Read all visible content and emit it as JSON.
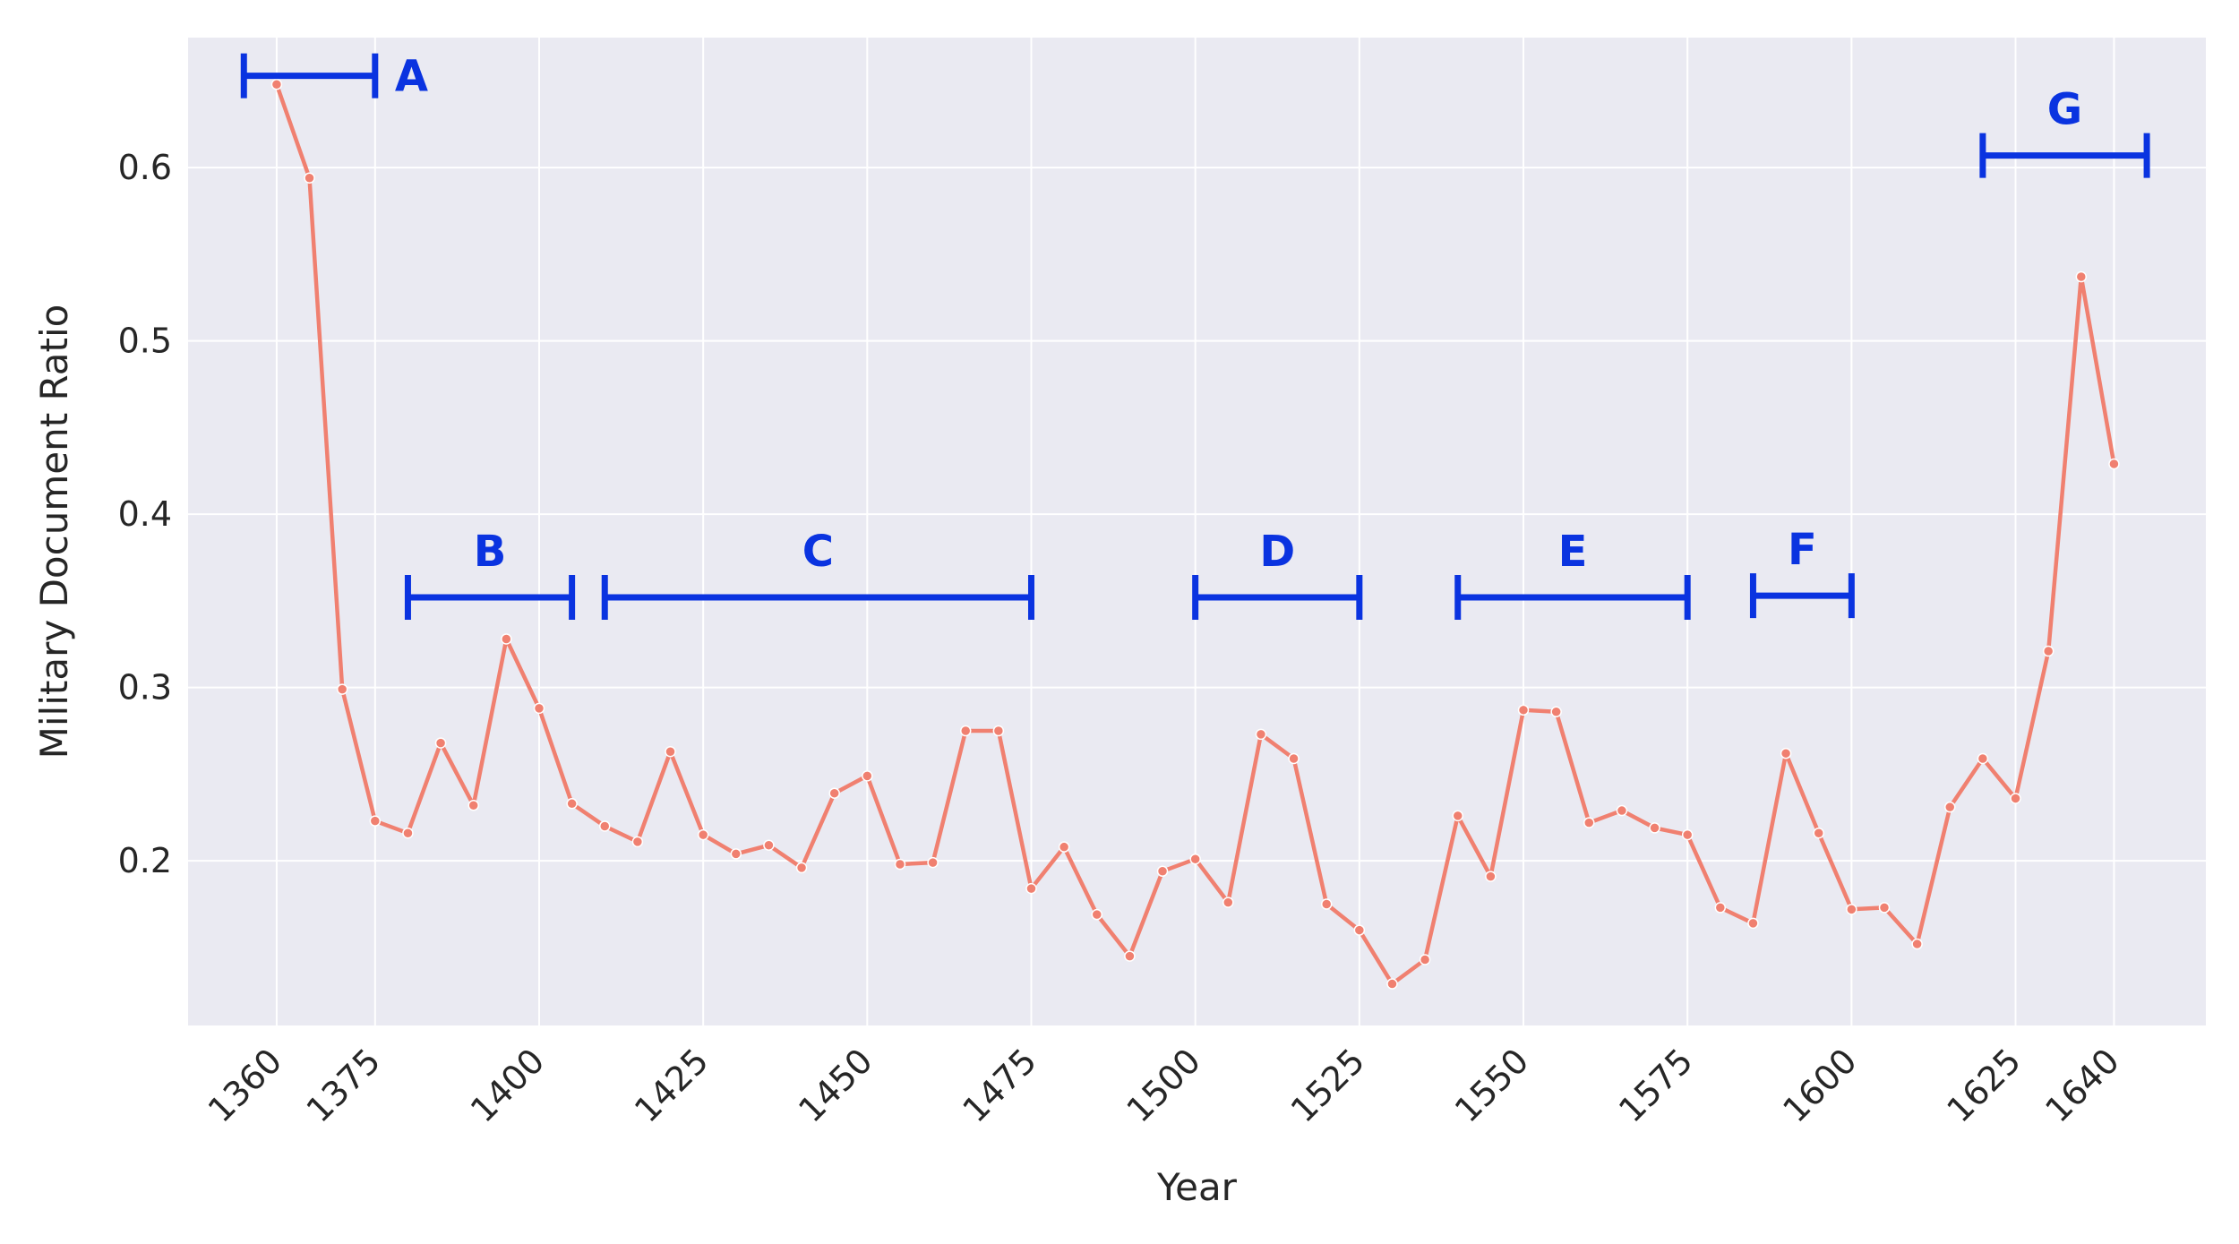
{
  "chart_data": {
    "type": "line",
    "title": "",
    "xlabel": "Year",
    "ylabel": "Military Document Ratio",
    "xlim": [
      1346.5,
      1654
    ],
    "ylim": [
      0.105,
      0.675
    ],
    "x_ticks": [
      1360,
      1375,
      1400,
      1425,
      1450,
      1475,
      1500,
      1525,
      1550,
      1575,
      1600,
      1625,
      1640
    ],
    "y_ticks": [
      0.2,
      0.3,
      0.4,
      0.5,
      0.6
    ],
    "y_tick_labels": [
      "0.2",
      "0.3",
      "0.4",
      "0.5",
      "0.6"
    ],
    "grid": true,
    "colors": {
      "background": "#eaeaf2",
      "grid": "#ffffff",
      "line": "#f08070",
      "span": "#0a33e0"
    },
    "series": [
      {
        "x": [
          1360,
          1365,
          1370,
          1375,
          1380,
          1385,
          1390,
          1395,
          1400,
          1405,
          1410,
          1415,
          1420,
          1425,
          1430,
          1435,
          1440,
          1445,
          1450,
          1455,
          1460,
          1465,
          1470,
          1475,
          1480,
          1485,
          1490,
          1495,
          1500,
          1505,
          1510,
          1515,
          1520,
          1525,
          1530,
          1535,
          1540,
          1545,
          1550,
          1555,
          1560,
          1565,
          1570,
          1575,
          1580,
          1585,
          1590,
          1595,
          1600,
          1605,
          1610,
          1615,
          1620,
          1625,
          1630,
          1635,
          1640
        ],
        "y": [
          0.648,
          0.594,
          0.299,
          0.223,
          0.216,
          0.268,
          0.232,
          0.328,
          0.288,
          0.233,
          0.22,
          0.211,
          0.263,
          0.215,
          0.204,
          0.209,
          0.196,
          0.239,
          0.249,
          0.198,
          0.199,
          0.275,
          0.275,
          0.184,
          0.208,
          0.169,
          0.145,
          0.194,
          0.201,
          0.176,
          0.273,
          0.259,
          0.175,
          0.16,
          0.129,
          0.143,
          0.226,
          0.191,
          0.287,
          0.286,
          0.222,
          0.229,
          0.219,
          0.215,
          0.173,
          0.164,
          0.262,
          0.216,
          0.172,
          0.173,
          0.152,
          0.231,
          0.259,
          0.236,
          0.321,
          0.537,
          0.429
        ]
      }
    ],
    "spans": [
      {
        "label": "A",
        "x0": 1355,
        "x1": 1375,
        "y": 0.653,
        "label_position": "right"
      },
      {
        "label": "B",
        "x0": 1380,
        "x1": 1405,
        "y": 0.352,
        "label_position": "above"
      },
      {
        "label": "C",
        "x0": 1410,
        "x1": 1475,
        "y": 0.352,
        "label_position": "above"
      },
      {
        "label": "D",
        "x0": 1500,
        "x1": 1525,
        "y": 0.352,
        "label_position": "above"
      },
      {
        "label": "E",
        "x0": 1540,
        "x1": 1575,
        "y": 0.352,
        "label_position": "above"
      },
      {
        "label": "F",
        "x0": 1585,
        "x1": 1600,
        "y": 0.353,
        "label_position": "above"
      },
      {
        "label": "G",
        "x0": 1620,
        "x1": 1645,
        "y": 0.607,
        "label_position": "above"
      }
    ]
  }
}
